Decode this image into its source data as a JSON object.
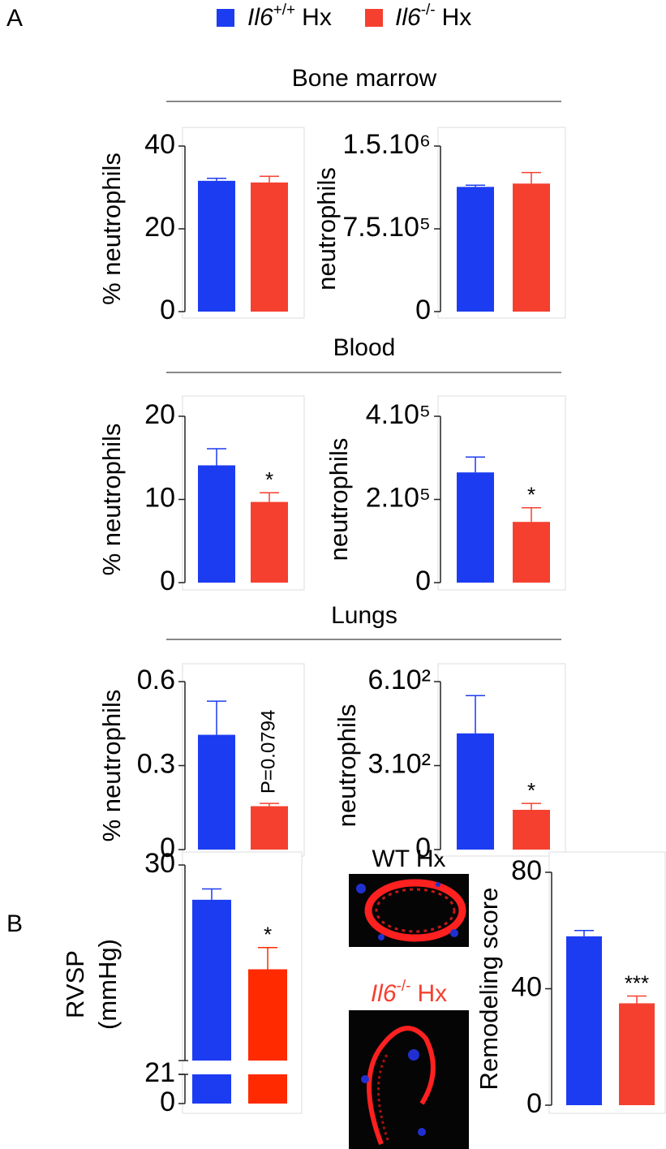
{
  "panels": [
    "A",
    "B"
  ],
  "legend": [
    {
      "gene": "Il6",
      "genotype": "+/+",
      "label": "Hx",
      "color": "#1c3cf2"
    },
    {
      "gene": "Il6",
      "genotype": "-/-",
      "label": "Hx",
      "color": "#f5402f"
    }
  ],
  "sections": [
    "Bone marrow",
    "Blood",
    "Lungs"
  ],
  "images": [
    {
      "label": "WT Hx"
    },
    {
      "gene": "Il6",
      "genotype": "-/-",
      "label": "Hx"
    }
  ],
  "chart_data": [
    {
      "type": "bar",
      "y_label": "% neutrophils",
      "ylim": [
        0,
        40
      ],
      "yticks": [
        0,
        20,
        40
      ],
      "values": [
        31.6,
        31.2
      ],
      "errors": [
        0.6,
        1.5
      ],
      "colors": [
        "#1c3cf2",
        "#f5402f"
      ]
    },
    {
      "type": "bar",
      "y_label": "neutrophils",
      "ylim": [
        0,
        1500000
      ],
      "yticks": [
        0,
        {
          "value": 750000,
          "label": "7.5.10⁵"
        },
        {
          "value": 1500000,
          "label": "1.5.10⁶"
        }
      ],
      "values": [
        1130000,
        1160000
      ],
      "errors": [
        15000,
        100000
      ],
      "colors": [
        "#1c3cf2",
        "#f5402f"
      ]
    },
    {
      "type": "bar",
      "y_label": "% neutrophils",
      "ylim": [
        0,
        20
      ],
      "yticks": [
        0,
        10,
        20
      ],
      "values": [
        14.1,
        9.7
      ],
      "errors": [
        2.0,
        1.1
      ],
      "value_notes": [
        null,
        "*"
      ],
      "colors": [
        "#1c3cf2",
        "#f5402f"
      ]
    },
    {
      "type": "bar",
      "y_label": "neutrophils",
      "ylim": [
        0,
        400000
      ],
      "yticks": [
        0,
        {
          "value": 200000,
          "label": "2.10⁵"
        },
        {
          "value": 400000,
          "label": "4.10⁵"
        }
      ],
      "values": [
        265000,
        146000
      ],
      "errors": [
        37000,
        34000
      ],
      "value_notes": [
        null,
        "*"
      ],
      "colors": [
        "#1c3cf2",
        "#f5402f"
      ]
    },
    {
      "type": "bar",
      "y_label": "% neutrophils",
      "ylim": [
        0,
        0.6
      ],
      "yticks": [
        0,
        0.3,
        0.6
      ],
      "values": [
        0.41,
        0.155
      ],
      "errors": [
        0.12,
        0.01
      ],
      "value_notes": [
        null,
        "P=0.0794"
      ],
      "colors": [
        "#1c3cf2",
        "#f5402f"
      ]
    },
    {
      "type": "bar",
      "y_label": "neutrophils",
      "ylim": [
        0,
        600
      ],
      "yticks": [
        0,
        {
          "value": 300,
          "label": "3.10²"
        },
        {
          "value": 600,
          "label": "6.10²"
        }
      ],
      "values": [
        415,
        142
      ],
      "errors": [
        135,
        23
      ],
      "value_notes": [
        null,
        "*"
      ],
      "colors": [
        "#1c3cf2",
        "#f5402f"
      ]
    },
    {
      "type": "bar",
      "y_label": [
        "RVSP",
        "(mmHg)"
      ],
      "ylim": [
        0,
        30
      ],
      "yticks": [
        0,
        21,
        30
      ],
      "ybreak": 21,
      "values": [
        28.4,
        25.2
      ],
      "errors": [
        0.5,
        1.0
      ],
      "value_notes": [
        null,
        "*"
      ],
      "colors": [
        "#1c3cf2",
        "#ff2a00"
      ]
    },
    {
      "type": "bar",
      "y_label": "Remodeling score",
      "ylim": [
        0,
        80
      ],
      "yticks": [
        0,
        40,
        80
      ],
      "values": [
        58,
        35
      ],
      "errors": [
        2,
        2.5
      ],
      "value_notes": [
        null,
        "***"
      ],
      "colors": [
        "#1c3cf2",
        "#f5402f"
      ]
    }
  ]
}
